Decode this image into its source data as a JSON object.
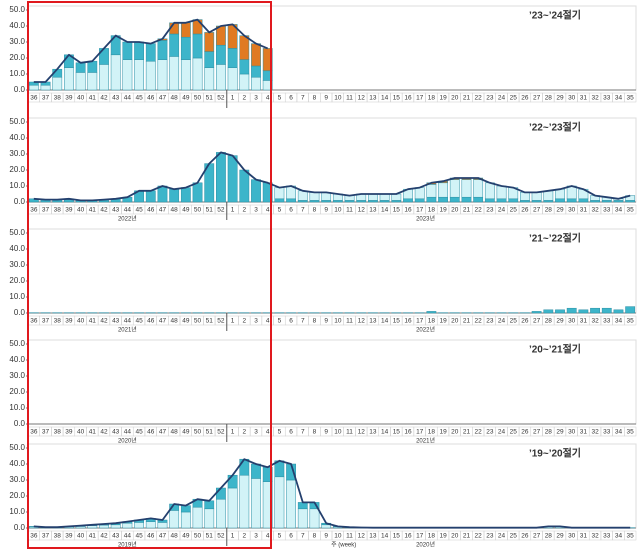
{
  "chart_data": [
    {
      "type": "bar",
      "stacked": true,
      "title": "’23~’24절기",
      "categories": [
        "36",
        "37",
        "38",
        "39",
        "40",
        "41",
        "42",
        "43",
        "44",
        "45",
        "46",
        "47",
        "48",
        "49",
        "50",
        "51",
        "52",
        "1",
        "2",
        "3",
        "4",
        "5",
        "6",
        "7",
        "8",
        "9",
        "10",
        "11",
        "12",
        "13",
        "14",
        "15",
        "16",
        "17",
        "18",
        "19",
        "20",
        "21",
        "22",
        "23",
        "24",
        "25",
        "26",
        "27",
        "28",
        "29",
        "30",
        "31",
        "32",
        "33",
        "34",
        "35"
      ],
      "series": [
        {
          "color": "#d2f3f7",
          "values": [
            3,
            3,
            8,
            14,
            11,
            11,
            16,
            22,
            19,
            19,
            18,
            19,
            21,
            19,
            20,
            14,
            16,
            14,
            10,
            8,
            6,
            null,
            null,
            null,
            null,
            null,
            null,
            null,
            null,
            null,
            null,
            null,
            null,
            null,
            null,
            null,
            null,
            null,
            null,
            null,
            null,
            null,
            null,
            null,
            null,
            null,
            null,
            null,
            null,
            null,
            null,
            null
          ]
        },
        {
          "color": "#3db5ca",
          "values": [
            2,
            2,
            5,
            8,
            6,
            7,
            10,
            12,
            11,
            11,
            11,
            12,
            14,
            14,
            15,
            10,
            12,
            12,
            9,
            7,
            6,
            null,
            null,
            null,
            null,
            null,
            null,
            null,
            null,
            null,
            null,
            null,
            null,
            null,
            null,
            null,
            null,
            null,
            null,
            null,
            null,
            null,
            null,
            null,
            null,
            null,
            null,
            null,
            null,
            null,
            null,
            null
          ]
        },
        {
          "color": "#e07a22",
          "values": [
            0,
            0,
            0,
            0,
            0,
            0,
            0,
            0,
            0,
            0,
            0,
            1,
            7,
            9,
            9,
            12,
            12,
            15,
            15,
            14,
            14,
            null,
            null,
            null,
            null,
            null,
            null,
            null,
            null,
            null,
            null,
            null,
            null,
            null,
            null,
            null,
            null,
            null,
            null,
            null,
            null,
            null,
            null,
            null,
            null,
            null,
            null,
            null,
            null,
            null,
            null,
            null
          ]
        }
      ],
      "total": {
        "color": "#24406e",
        "values": [
          5,
          5,
          13,
          22,
          17,
          18,
          26,
          34,
          30,
          30,
          29,
          32,
          42,
          42,
          44,
          36,
          40,
          41,
          34,
          29,
          26,
          null,
          null,
          null,
          null,
          null,
          null,
          null,
          null,
          null,
          null,
          null,
          null,
          null,
          null,
          null,
          null,
          null,
          null,
          null,
          null,
          null,
          null,
          null,
          null,
          null,
          null,
          null,
          null,
          null,
          null,
          null
        ]
      },
      "ylim": [
        0,
        50
      ],
      "yticks": [
        {
          "value": 0,
          "label": "0.0"
        },
        {
          "value": 10,
          "label": "10.0"
        },
        {
          "value": 20,
          "label": "20.0"
        },
        {
          "value": 30,
          "label": "30.0"
        },
        {
          "value": 40,
          "label": "40.0"
        },
        {
          "value": 50,
          "label": "50.0"
        }
      ]
    },
    {
      "type": "bar",
      "stacked": true,
      "title": "’22~’23절기",
      "categories": [
        "36",
        "37",
        "38",
        "39",
        "40",
        "41",
        "42",
        "43",
        "44",
        "45",
        "46",
        "47",
        "48",
        "49",
        "50",
        "51",
        "52",
        "1",
        "2",
        "3",
        "4",
        "5",
        "6",
        "7",
        "8",
        "9",
        "10",
        "11",
        "12",
        "13",
        "14",
        "15",
        "16",
        "17",
        "18",
        "19",
        "20",
        "21",
        "22",
        "23",
        "24",
        "25",
        "26",
        "27",
        "28",
        "29",
        "30",
        "31",
        "32",
        "33",
        "34",
        "35"
      ],
      "series": [
        {
          "color": "#3db5ca",
          "values": [
            2,
            1.5,
            1.5,
            2,
            1,
            1,
            1.5,
            2,
            3,
            7,
            7,
            10,
            8,
            9,
            12,
            24,
            31,
            29,
            20,
            14,
            12,
            2,
            2,
            1,
            1,
            1,
            1,
            1,
            1,
            1,
            1,
            1,
            2,
            2,
            3,
            3,
            3,
            3,
            3,
            2,
            2,
            2,
            1,
            1,
            1,
            2,
            2,
            2,
            1,
            1,
            1,
            1
          ]
        },
        {
          "color": "#d2f3f7",
          "values": [
            0,
            0,
            0,
            0,
            0,
            0,
            0,
            0,
            0,
            0,
            0,
            0,
            0,
            0,
            0,
            0,
            0,
            0,
            0,
            0,
            0,
            7,
            8,
            6,
            5,
            5,
            4,
            3,
            4,
            4,
            4,
            4,
            6,
            7,
            8,
            9,
            11,
            11,
            11,
            10,
            8,
            7,
            5,
            5,
            6,
            6,
            8,
            6,
            3,
            2,
            1,
            3
          ]
        },
        {
          "color": "#e07a22",
          "values": [
            0,
            0,
            0,
            0,
            0,
            0,
            0,
            0,
            0,
            0,
            0,
            0,
            0,
            0,
            0,
            0,
            0,
            0,
            0,
            0,
            0,
            0,
            0,
            0,
            0,
            0,
            0,
            0,
            0,
            0,
            0,
            0,
            0,
            0,
            1,
            1,
            1,
            1,
            1,
            0,
            0,
            0,
            0,
            0,
            0,
            0,
            0,
            0,
            0,
            0,
            0,
            0
          ]
        }
      ],
      "total": {
        "color": "#24406e",
        "values": [
          2,
          1.5,
          1.5,
          2,
          1,
          1,
          1.5,
          2,
          3,
          7,
          7,
          10,
          8,
          9,
          12,
          24,
          31,
          29,
          20,
          14,
          12,
          9,
          10,
          7,
          6,
          6,
          5,
          4,
          5,
          5,
          5,
          5,
          8,
          9,
          12,
          13,
          15,
          15,
          15,
          12,
          10,
          9,
          6,
          6,
          7,
          8,
          10,
          8,
          4,
          3,
          2,
          4
        ]
      },
      "year_labels": [
        "2022년",
        "2023년"
      ],
      "ylim": [
        0,
        50
      ],
      "yticks": [
        {
          "value": 0,
          "label": "0.0"
        },
        {
          "value": 10,
          "label": "10.0"
        },
        {
          "value": 20,
          "label": "20.0"
        },
        {
          "value": 30,
          "label": "30.0"
        },
        {
          "value": 40,
          "label": "40.0"
        },
        {
          "value": 50,
          "label": "50.0"
        }
      ]
    },
    {
      "type": "bar",
      "stacked": true,
      "title": "’21~’22절기",
      "categories": [
        "36",
        "37",
        "38",
        "39",
        "40",
        "41",
        "42",
        "43",
        "44",
        "45",
        "46",
        "47",
        "48",
        "49",
        "50",
        "51",
        "52",
        "1",
        "2",
        "3",
        "4",
        "5",
        "6",
        "7",
        "8",
        "9",
        "10",
        "11",
        "12",
        "13",
        "14",
        "15",
        "16",
        "17",
        "18",
        "19",
        "20",
        "21",
        "22",
        "23",
        "24",
        "25",
        "26",
        "27",
        "28",
        "29",
        "30",
        "31",
        "32",
        "33",
        "34",
        "35"
      ],
      "series": [
        {
          "color": "#3db5ca",
          "values": [
            0.2,
            0.2,
            0.2,
            0.2,
            0.2,
            0.2,
            0.2,
            0.2,
            0.2,
            0.2,
            0.2,
            0.2,
            0.2,
            0.2,
            0.2,
            0.2,
            0.2,
            0.2,
            0.2,
            0.2,
            0.2,
            0.2,
            0.2,
            0.2,
            0.2,
            0.2,
            0.2,
            0.2,
            0.2,
            0.2,
            0.2,
            0.2,
            0.2,
            0.2,
            1,
            0.2,
            0.2,
            0.2,
            0.2,
            0.2,
            0.2,
            0.2,
            0.2,
            1,
            2,
            2,
            3,
            2,
            3,
            3,
            2,
            4
          ]
        }
      ],
      "year_labels": [
        "2021년",
        "2022년"
      ],
      "ylim": [
        0,
        50
      ],
      "yticks": [
        {
          "value": 0,
          "label": "0.0"
        },
        {
          "value": 10,
          "label": "10.0"
        },
        {
          "value": 20,
          "label": "20.0"
        },
        {
          "value": 30,
          "label": "30.0"
        },
        {
          "value": 40,
          "label": "40.0"
        },
        {
          "value": 50,
          "label": "50.0"
        }
      ]
    },
    {
      "type": "bar",
      "stacked": true,
      "title": "’20~’21절기",
      "categories": [
        "36",
        "37",
        "38",
        "39",
        "40",
        "41",
        "42",
        "43",
        "44",
        "45",
        "46",
        "47",
        "48",
        "49",
        "50",
        "51",
        "52",
        "1",
        "2",
        "3",
        "4",
        "5",
        "6",
        "7",
        "8",
        "9",
        "10",
        "11",
        "12",
        "13",
        "14",
        "15",
        "16",
        "17",
        "18",
        "19",
        "20",
        "21",
        "22",
        "23",
        "24",
        "25",
        "26",
        "27",
        "28",
        "29",
        "30",
        "31",
        "32",
        "33",
        "34",
        "35"
      ],
      "series": [],
      "year_labels": [
        "2020년",
        "2021년"
      ],
      "ylim": [
        0,
        50
      ],
      "yticks": [
        {
          "value": 0,
          "label": "0.0"
        },
        {
          "value": 10,
          "label": "10.0"
        },
        {
          "value": 20,
          "label": "20.0"
        },
        {
          "value": 30,
          "label": "30.0"
        },
        {
          "value": 40,
          "label": "40.0"
        },
        {
          "value": 50,
          "label": "50.0"
        }
      ]
    },
    {
      "type": "bar",
      "stacked": true,
      "title": "’19~’20절기",
      "categories": [
        "36",
        "37",
        "38",
        "39",
        "40",
        "41",
        "42",
        "43",
        "44",
        "45",
        "46",
        "47",
        "48",
        "49",
        "50",
        "51",
        "52",
        "1",
        "2",
        "3",
        "4",
        "5",
        "6",
        "7",
        "8",
        "9",
        "10",
        "11",
        "12",
        "13",
        "14",
        "15",
        "16",
        "17",
        "18",
        "19",
        "20",
        "21",
        "22",
        "23",
        "24",
        "25",
        "26",
        "27",
        "28",
        "29",
        "30",
        "31",
        "32",
        "33",
        "34",
        "35"
      ],
      "series": [
        {
          "color": "#d2f3f7",
          "values": [
            0.7,
            0.3,
            0.3,
            0.7,
            1,
            1.5,
            1.8,
            2,
            3,
            3.5,
            4,
            3.5,
            11,
            10,
            13,
            12,
            18,
            25,
            33,
            31,
            29,
            32,
            30,
            12,
            12,
            2,
            0.7,
            0.3,
            0.2,
            0.2,
            0.2,
            0.2,
            0.2,
            0.2,
            0.2,
            0.2,
            0.2,
            0.2,
            0.2,
            0.2,
            0.2,
            0.2,
            0.2,
            0.2,
            1,
            1,
            0.2,
            0.2,
            0.2,
            0.2,
            0.2,
            0.2
          ]
        },
        {
          "color": "#3db5ca",
          "values": [
            0.3,
            0.2,
            0.2,
            0.3,
            0.5,
            0.5,
            0.7,
            1,
            1,
            1.5,
            2,
            1.5,
            4,
            4,
            5,
            5,
            7,
            8,
            10,
            9,
            9,
            10,
            10,
            4,
            4,
            1,
            0.3,
            0.2,
            0.1,
            0,
            0,
            0,
            0,
            0,
            0,
            0,
            0,
            0,
            0,
            0,
            0,
            0,
            0,
            0,
            0,
            0,
            0,
            0,
            0,
            0,
            0,
            0
          ]
        }
      ],
      "total": {
        "color": "#24406e",
        "values": [
          1,
          0.5,
          0.5,
          1,
          1.5,
          2,
          2.5,
          3,
          4,
          5,
          6,
          5,
          15,
          14,
          18,
          17,
          25,
          33,
          43,
          40,
          38,
          42,
          40,
          16,
          16,
          3,
          1,
          0.5,
          0.3,
          0.2,
          0.2,
          0.2,
          0.2,
          0.2,
          0.2,
          0.2,
          0.2,
          0.2,
          0.2,
          0.2,
          0.2,
          0.2,
          0.2,
          0.2,
          1,
          1,
          0.2,
          0.2,
          0.2,
          0.2,
          0.2,
          0.2
        ]
      },
      "year_labels": [
        "2019년",
        "2020년"
      ],
      "x_label": "주 (week)",
      "ylim": [
        0,
        50
      ],
      "yticks": [
        {
          "value": 0,
          "label": "0.0"
        },
        {
          "value": 10,
          "label": "10.0"
        },
        {
          "value": 20,
          "label": "20.0"
        },
        {
          "value": 30,
          "label": "30.0"
        },
        {
          "value": 40,
          "label": "40.0"
        },
        {
          "value": 50,
          "label": "50.0"
        }
      ]
    }
  ]
}
